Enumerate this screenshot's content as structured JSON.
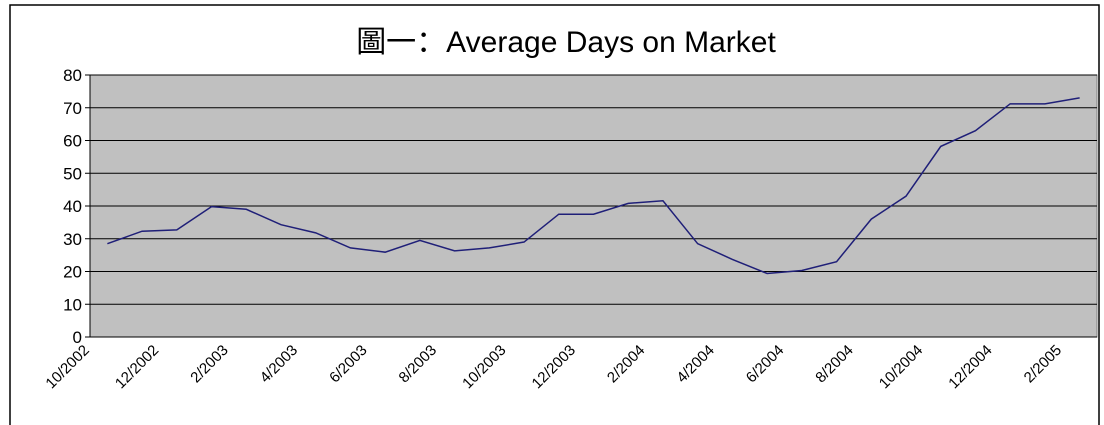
{
  "chart_data": {
    "type": "line",
    "title": "圖一：Average Days on Market",
    "categories": [
      "10/2002",
      null,
      "12/2002",
      null,
      "2/2003",
      null,
      "4/2003",
      null,
      "6/2003",
      null,
      "8/2003",
      null,
      "10/2003",
      null,
      "12/2003",
      null,
      "2/2004",
      null,
      "4/2004",
      null,
      "6/2004",
      null,
      "8/2004",
      null,
      "10/2004",
      null,
      "12/2004",
      null,
      "2/2005"
    ],
    "values": [
      28.5,
      32.3,
      32.7,
      39.8,
      39,
      34.3,
      31.8,
      27.2,
      25.9,
      29.5,
      26.3,
      27.2,
      29,
      37.5,
      37.5,
      40.8,
      41.6,
      28.5,
      23.7,
      19.4,
      20.3,
      23,
      36,
      43,
      58.2,
      63,
      71.2,
      71.2,
      73
    ],
    "color": "#1f1f78",
    "ylim": [
      0,
      80
    ],
    "yticks": [
      0,
      10,
      20,
      30,
      40,
      50,
      60,
      70,
      80
    ],
    "grid": true
  }
}
